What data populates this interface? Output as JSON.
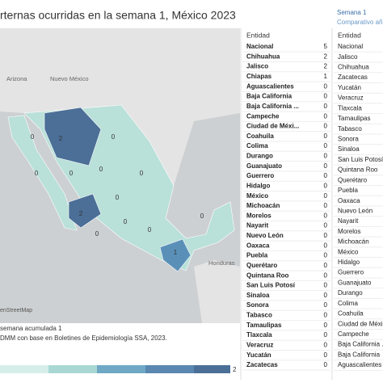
{
  "header": {
    "title": "rternas ocurridas en la semana 1, México 2023",
    "filter_label": "Semana 1",
    "filter_sub": "Comparativo años"
  },
  "map": {
    "region_labels": [
      "Arizona",
      "Nuevo México",
      "Honduras"
    ],
    "attribution": "enStreetMap",
    "state_values": [
      2,
      2,
      1,
      0,
      0,
      0,
      0,
      0,
      0,
      0,
      0,
      0,
      0,
      0
    ]
  },
  "footer": {
    "line1": "semana acumulada 1",
    "line2": "DMM con base en Boletines de Epidemiología SSA, 2023."
  },
  "legend": {
    "max": 2
  },
  "table1": {
    "header": "Entidad",
    "rows": [
      [
        "Nacional",
        5
      ],
      [
        "Chihuahua",
        2
      ],
      [
        "Jalisco",
        2
      ],
      [
        "Chiapas",
        1
      ],
      [
        "Aguascalientes",
        0
      ],
      [
        "Baja California",
        0
      ],
      [
        "Baja California ...",
        0
      ],
      [
        "Campeche",
        0
      ],
      [
        "Ciudad de Méxi...",
        0
      ],
      [
        "Coahuila",
        0
      ],
      [
        "Colima",
        0
      ],
      [
        "Durango",
        0
      ],
      [
        "Guanajuato",
        0
      ],
      [
        "Guerrero",
        0
      ],
      [
        "Hidalgo",
        0
      ],
      [
        "México",
        0
      ],
      [
        "Michoacán",
        0
      ],
      [
        "Morelos",
        0
      ],
      [
        "Nayarit",
        0
      ],
      [
        "Nuevo León",
        0
      ],
      [
        "Oaxaca",
        0
      ],
      [
        "Puebla",
        0
      ],
      [
        "Querétaro",
        0
      ],
      [
        "Quintana Roo",
        0
      ],
      [
        "San Luis Potosí",
        0
      ],
      [
        "Sinaloa",
        0
      ],
      [
        "Sonora",
        0
      ],
      [
        "Tabasco",
        0
      ],
      [
        "Tamaulipas",
        0
      ],
      [
        "Tlaxcala",
        0
      ],
      [
        "Veracruz",
        0
      ],
      [
        "Yucatán",
        0
      ],
      [
        "Zacatecas",
        0
      ]
    ]
  },
  "table2": {
    "header": "Entidad",
    "rows": [
      "Nacional",
      "Jalisco",
      "Chihuahua",
      "Zacatecas",
      "Yucatán",
      "Veracruz",
      "Tlaxcala",
      "Tamaulipas",
      "Tabasco",
      "Sonora",
      "Sinaloa",
      "San Luis Potosí",
      "Quintana Roo",
      "Querétaro",
      "Puebla",
      "Oaxaca",
      "Nuevo León",
      "Nayarit",
      "Morelos",
      "Michoacán",
      "México",
      "Hidalgo",
      "Guerrero",
      "Guanajuato",
      "Durango",
      "Colima",
      "Coahuila",
      "Ciudad de Méxi...",
      "Campeche",
      "Baja California ...",
      "Baja California",
      "Aguascalientes"
    ]
  }
}
